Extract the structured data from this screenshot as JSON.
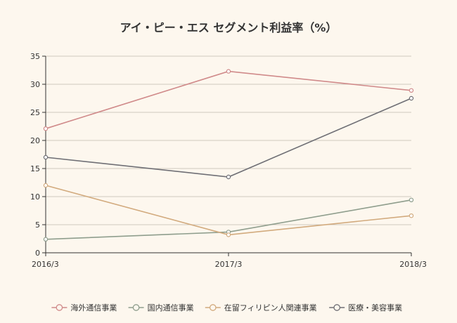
{
  "chart_data": {
    "type": "line",
    "title": "アイ・ピー・エス セグメント利益率（%）",
    "categories": [
      "2016/3",
      "2017/3",
      "2018/3"
    ],
    "ylim": [
      0,
      35
    ],
    "yticks": [
      0,
      5,
      10,
      15,
      20,
      25,
      30,
      35
    ],
    "grid": true,
    "legend_position": "bottom",
    "series": [
      {
        "name": "海外通信事業",
        "values": [
          22.1,
          32.3,
          28.9
        ],
        "color": "#d08a8a"
      },
      {
        "name": "国内通信事業",
        "values": [
          2.4,
          3.7,
          9.4
        ],
        "color": "#8f9e8d"
      },
      {
        "name": "在留フィリピン人関連事業",
        "values": [
          12.0,
          3.2,
          6.6
        ],
        "color": "#d2aa7d"
      },
      {
        "name": "医療・美容事業",
        "values": [
          17.0,
          13.5,
          27.5
        ],
        "color": "#6f6f75"
      }
    ]
  }
}
